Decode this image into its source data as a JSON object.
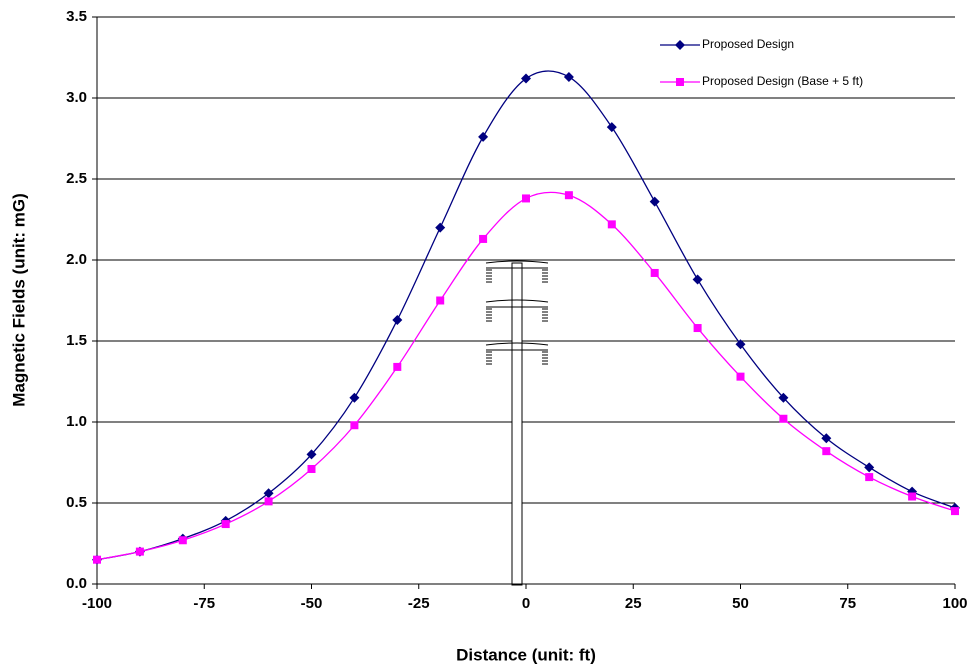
{
  "chart_data": {
    "type": "line",
    "x_label": "Distance (unit: ft)",
    "y_label": "Magnetic Fields (unit: mG)",
    "x": [
      -100,
      -90,
      -80,
      -70,
      -60,
      -50,
      -40,
      -30,
      -20,
      -10,
      0,
      10,
      20,
      30,
      40,
      50,
      60,
      70,
      80,
      90,
      100
    ],
    "series": [
      {
        "name": "Proposed Design",
        "color": "#000080",
        "marker": "diamond",
        "values": [
          0.15,
          0.2,
          0.28,
          0.39,
          0.56,
          0.8,
          1.15,
          1.63,
          2.2,
          2.76,
          3.12,
          3.13,
          2.82,
          2.36,
          1.88,
          1.48,
          1.15,
          0.9,
          0.72,
          0.57,
          0.47
        ]
      },
      {
        "name": "Proposed Design (Base + 5 ft)",
        "color": "#ff00ff",
        "marker": "square",
        "values": [
          0.15,
          0.2,
          0.27,
          0.37,
          0.51,
          0.71,
          0.98,
          1.34,
          1.75,
          2.13,
          2.38,
          2.4,
          2.22,
          1.92,
          1.58,
          1.28,
          1.02,
          0.82,
          0.66,
          0.54,
          0.45
        ]
      }
    ],
    "xlim": [
      -100,
      100
    ],
    "xticks": [
      -100,
      -75,
      -50,
      -25,
      0,
      25,
      50,
      75,
      100
    ],
    "ylim": [
      0,
      3.5
    ],
    "yticks": [
      {
        "value": 0,
        "label": "0.0"
      },
      0.5,
      {
        "value": 1,
        "label": "1.0"
      },
      1.5,
      {
        "value": 2,
        "label": "2.0"
      },
      2.5,
      {
        "value": 3,
        "label": "3.0"
      },
      3.5
    ],
    "grid": true,
    "smooth": true,
    "legend_position": "top-right"
  }
}
